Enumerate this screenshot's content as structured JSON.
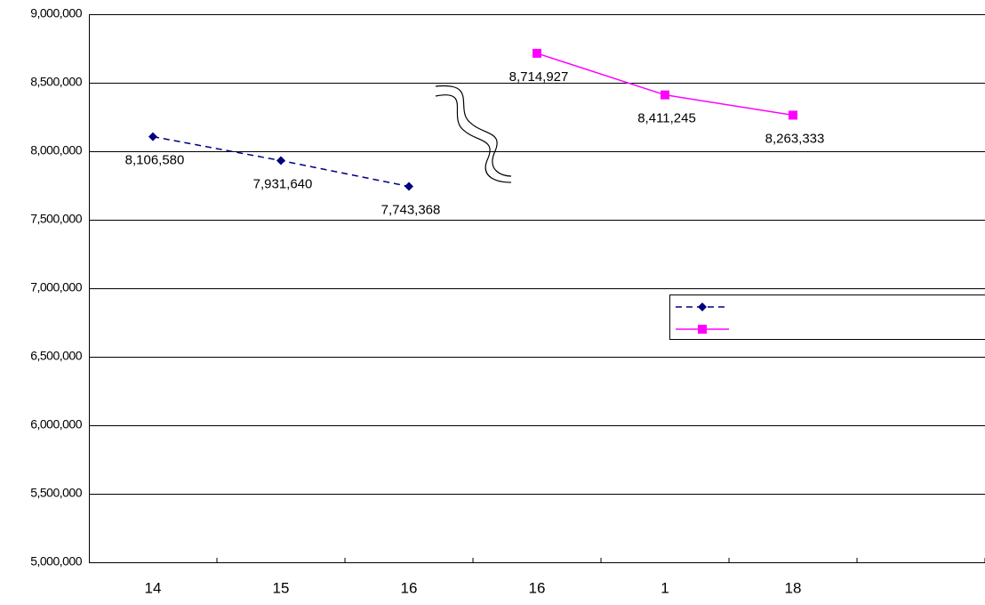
{
  "chart_data": {
    "type": "line",
    "categories": [
      "14",
      "15",
      "16",
      "16",
      "1",
      "18",
      null
    ],
    "series": [
      {
        "color": "#000080",
        "line_style": "dashed",
        "marker": "diamond",
        "values": [
          8106580,
          7931640,
          7743368,
          null,
          null,
          null,
          null
        ],
        "value_labels": [
          "8,106,580",
          "7,931,640",
          "7,743,368",
          null,
          null,
          null,
          null
        ]
      },
      {
        "color": "#ff00ff",
        "line_style": "solid",
        "marker": "square",
        "values": [
          null,
          null,
          null,
          8714927,
          8411245,
          8263333,
          null
        ],
        "value_labels": [
          null,
          null,
          null,
          "8,714,927",
          "8,411,245",
          "8,263,333",
          null
        ]
      }
    ],
    "ylim": [
      5000000,
      9000000
    ],
    "yticks": [
      {
        "value": 5000000,
        "label": "5,000,000"
      },
      {
        "value": 5500000,
        "label": "5,500,000"
      },
      {
        "value": 6000000,
        "label": "6,000,000"
      },
      {
        "value": 6500000,
        "label": "6,500,000"
      },
      {
        "value": 7000000,
        "label": "7,000,000"
      },
      {
        "value": 7500000,
        "label": "7,500,000"
      },
      {
        "value": 8000000,
        "label": "8,000,000"
      },
      {
        "value": 8500000,
        "label": "8,500,000"
      },
      {
        "value": 9000000,
        "label": "9,000,000"
      }
    ],
    "grid": true
  }
}
